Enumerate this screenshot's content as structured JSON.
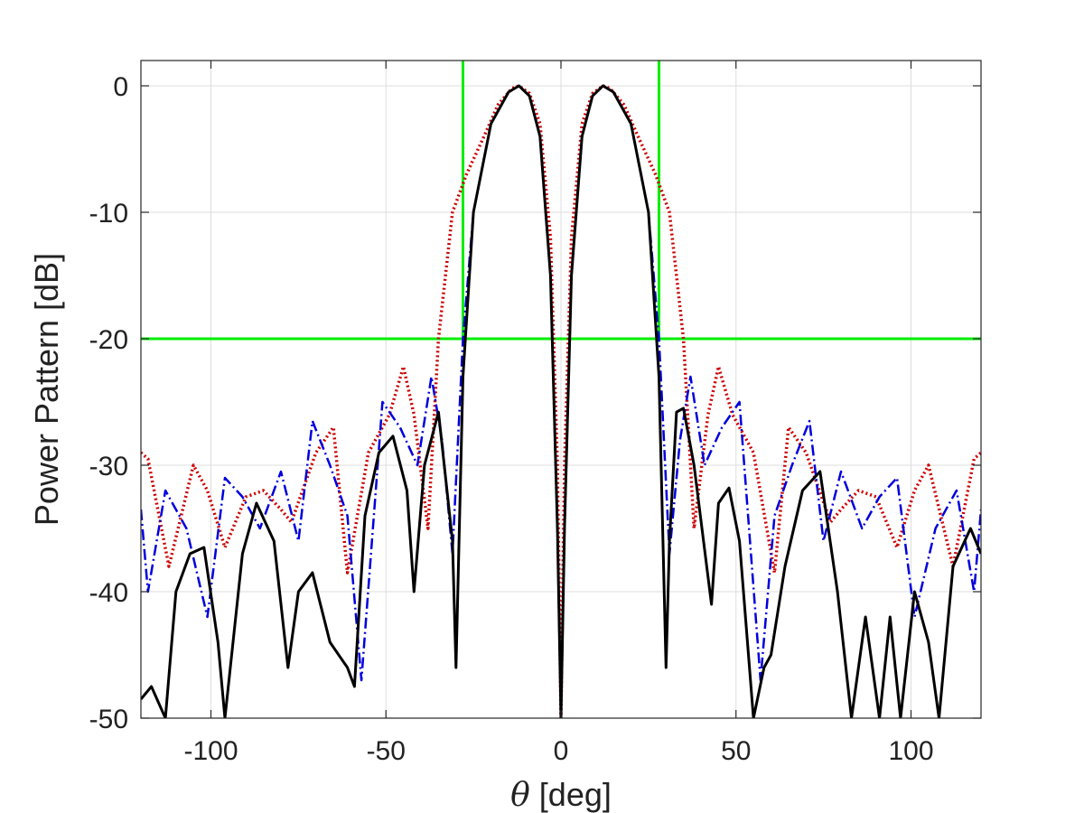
{
  "chart_data": {
    "type": "line",
    "xlabel_symbol": "θ",
    "xlabel_text": " [deg]",
    "ylabel": "Power Pattern [dB]",
    "xlim": [
      -120,
      120
    ],
    "ylim": [
      -50,
      2
    ],
    "xticks": [
      -100,
      -50,
      0,
      50,
      100
    ],
    "xtick_labels": [
      "-100",
      "-50",
      "0",
      "50",
      "100"
    ],
    "yticks": [
      0,
      -10,
      -20,
      -30,
      -40,
      -50
    ],
    "ytick_labels": [
      "0",
      "-10",
      "-20",
      "-30",
      "-40",
      "-50"
    ],
    "grid": true,
    "series": [
      {
        "style": "solid",
        "color": "#00ee00",
        "x": [
          -120,
          -28,
          -28,
          -28,
          28,
          28,
          28,
          120
        ],
        "y": [
          -20,
          -20,
          2,
          -20,
          -20,
          2,
          -20,
          -20
        ]
      },
      {
        "style": "dotted",
        "color": "#cc0000",
        "x": [
          -120,
          -118,
          -112,
          -105,
          -101,
          -96,
          -90,
          -85,
          -80,
          -77,
          -70,
          -65,
          -61,
          -55,
          -49,
          -45,
          -42,
          -38,
          -35,
          -31,
          -27,
          -22,
          -18,
          -14,
          -12,
          -9,
          -6,
          -3,
          -1,
          0,
          1,
          3,
          6,
          9,
          12,
          14,
          18,
          22,
          27,
          31,
          35,
          38,
          42,
          45,
          49,
          55,
          61,
          65,
          70,
          77,
          80,
          85,
          90,
          96,
          101,
          105,
          112,
          118,
          120
        ],
        "y": [
          -29,
          -29.5,
          -38,
          -30,
          -32,
          -36.5,
          -32.5,
          -32,
          -33.5,
          -34.5,
          -29,
          -27,
          -38.5,
          -29,
          -26,
          -22.2,
          -26,
          -35,
          -20,
          -10,
          -7,
          -4,
          -1.5,
          -0.2,
          0,
          -0.6,
          -3,
          -12,
          -30,
          -50,
          -30,
          -12,
          -3,
          -0.6,
          0,
          -0.2,
          -1.5,
          -4,
          -7,
          -10,
          -20,
          -35,
          -26,
          -22.2,
          -26,
          -29,
          -38.5,
          -27,
          -29,
          -34.5,
          -33.5,
          -32,
          -32.5,
          -36.5,
          -32,
          -30,
          -38,
          -29.5,
          -29
        ]
      },
      {
        "style": "dashdot",
        "color": "#0000dd",
        "x": [
          -120,
          -118,
          -113,
          -107,
          -101,
          -96,
          -91,
          -86,
          -80,
          -75,
          -71,
          -66,
          -61,
          -57,
          -51,
          -46,
          -41,
          -37,
          -34,
          -31,
          -28,
          -25,
          -20,
          -15,
          -12,
          -9,
          -6,
          -3,
          -1,
          0,
          1,
          3,
          6,
          9,
          12,
          15,
          20,
          25,
          28,
          31,
          34,
          37,
          41,
          46,
          51,
          57,
          61,
          66,
          71,
          75,
          80,
          86,
          91,
          96,
          101,
          107,
          113,
          118,
          120
        ],
        "y": [
          -33.5,
          -40,
          -32,
          -35,
          -42,
          -31,
          -32.5,
          -35,
          -30.5,
          -36,
          -26.5,
          -30,
          -34,
          -47,
          -25,
          -27,
          -30,
          -23,
          -28,
          -37,
          -20,
          -10,
          -3,
          -0.5,
          0,
          -0.8,
          -4,
          -15,
          -35,
          -50,
          -35,
          -15,
          -4,
          -0.8,
          0,
          -0.5,
          -3,
          -10,
          -20,
          -37,
          -28,
          -23,
          -30,
          -27,
          -25,
          -47,
          -34,
          -30,
          -26.5,
          -36,
          -30.5,
          -35,
          -32.5,
          -31,
          -42,
          -35,
          -32,
          -40,
          -33.5
        ]
      },
      {
        "style": "solid",
        "color": "#000000",
        "x": [
          -120,
          -117,
          -113,
          -110,
          -106,
          -102,
          -98,
          -96,
          -91,
          -87,
          -82,
          -78,
          -75,
          -71,
          -66,
          -61,
          -59,
          -56,
          -52,
          -48,
          -44,
          -42,
          -39,
          -35,
          -31,
          -30,
          -28,
          -25,
          -20,
          -15,
          -12,
          -9,
          -6,
          -3,
          -1,
          0,
          1,
          3,
          6,
          9,
          12,
          15,
          20,
          25,
          28,
          30,
          31,
          33,
          35,
          38,
          43,
          45,
          48,
          51,
          55,
          58,
          60,
          64,
          69,
          74,
          79,
          83,
          87,
          91,
          94,
          97,
          101,
          105,
          108,
          112,
          117,
          120
        ],
        "y": [
          -48.5,
          -47.5,
          -50,
          -40,
          -37,
          -36.5,
          -44,
          -50,
          -37,
          -33,
          -36,
          -46,
          -40,
          -38.5,
          -44,
          -46,
          -47.5,
          -34,
          -29,
          -27.7,
          -32,
          -40,
          -30,
          -25.8,
          -36,
          -46,
          -23,
          -10,
          -3,
          -0.5,
          0,
          -0.8,
          -4,
          -15,
          -35,
          -50,
          -35,
          -15,
          -4,
          -0.8,
          0,
          -0.5,
          -3,
          -10,
          -23,
          -46,
          -36,
          -25.8,
          -25.5,
          -30,
          -41,
          -33,
          -31.8,
          -36,
          -50,
          -46,
          -45,
          -38,
          -32,
          -30.5,
          -40,
          -50,
          -42,
          -50,
          -42,
          -50,
          -40,
          -44,
          -50,
          -38,
          -35,
          -37
        ]
      }
    ]
  }
}
